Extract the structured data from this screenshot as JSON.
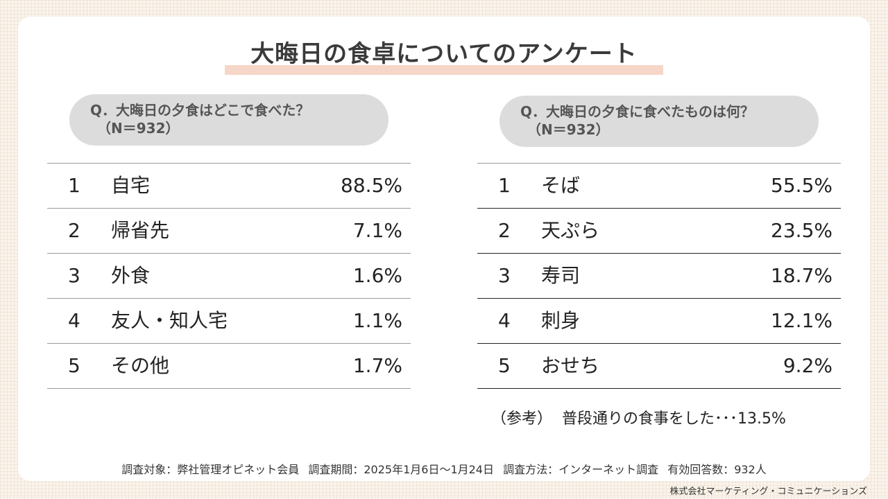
{
  "title": "大晦日の食卓についてのアンケート",
  "left": {
    "question": "Q．大晦日の夕食はどこで食べた？",
    "n": "（N＝932）",
    "rows": [
      {
        "rank": "1",
        "label": "自宅",
        "value": "88.5%"
      },
      {
        "rank": "2",
        "label": "帰省先",
        "value": "7.1%"
      },
      {
        "rank": "3",
        "label": "外食",
        "value": "1.6%"
      },
      {
        "rank": "4",
        "label": "友人・知人宅",
        "value": "1.1%"
      },
      {
        "rank": "5",
        "label": "その他",
        "value": "1.7%"
      }
    ]
  },
  "right": {
    "question": "Q．大晦日の夕食に食べたものは何？",
    "n": "（N＝932）",
    "rows": [
      {
        "rank": "1",
        "label": "そば",
        "value": "55.5%"
      },
      {
        "rank": "2",
        "label": "天ぷら",
        "value": "23.5%"
      },
      {
        "rank": "3",
        "label": "寿司",
        "value": "18.7%"
      },
      {
        "rank": "4",
        "label": "刺身",
        "value": "12.1%"
      },
      {
        "rank": "5",
        "label": "おせち",
        "value": "9.2%"
      }
    ],
    "reference_prefix": "（参考）",
    "reference_text": "普段通りの食事をした･･･13.5%"
  },
  "footnote": {
    "target": "調査対象：弊社管理オピネット会員",
    "period": "調査期間：2025年1月6日～1月24日",
    "method": "調査方法：インターネット調査",
    "responses": "有効回答数：932人"
  },
  "company": "株式会社マーケティング・コミュニケーションズ",
  "colors": {
    "title_underline": "#f6d6c8",
    "question_pill": "#dcdcdc",
    "background": "#faf4ec"
  }
}
